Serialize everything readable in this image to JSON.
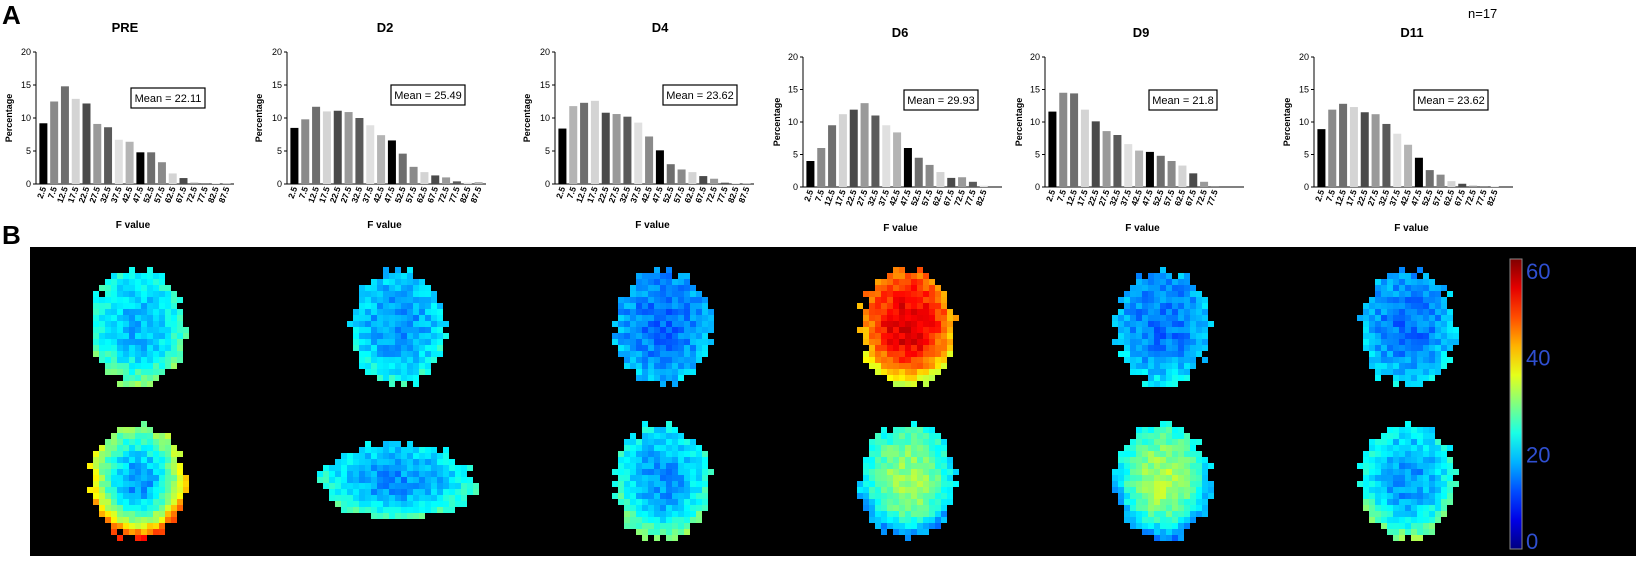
{
  "panel_labels": {
    "a": "A",
    "b": "B"
  },
  "n_label": "n=17",
  "chart_data": [
    {
      "type": "bar",
      "title": "PRE",
      "xlabel": "F value",
      "ylabel": "Percentage",
      "ylim": [
        0,
        20
      ],
      "yticks": [
        "0",
        "5",
        "10",
        "15",
        "20"
      ],
      "categories": [
        "2.5",
        "7.5",
        "12.5",
        "17.5",
        "22.5",
        "27.5",
        "32.5",
        "37.5",
        "42.5",
        "47.5",
        "52.5",
        "57.5",
        "62.5",
        "67.5",
        "72.5",
        "77.5",
        "82.5",
        "87.5"
      ],
      "values": [
        9.2,
        12.5,
        14.8,
        12.9,
        12.2,
        9.1,
        8.6,
        6.7,
        6.4,
        4.8,
        4.8,
        3.3,
        1.6,
        0.9,
        0.2,
        0.1,
        0.1,
        0.1
      ],
      "annotation": "Mean = 22.11",
      "bar_colors": [
        "#000000",
        "#8a8a8a",
        "#6e6e6e",
        "#d4d4d4",
        "#4a4a4a",
        "#9a9a9a",
        "#5a5a5a",
        "#e0e0e0",
        "#b4b4b4",
        "#000000",
        "#6e6e6e",
        "#8a8a8a",
        "#d4d4d4",
        "#4a4a4a",
        "#9a9a9a",
        "#5a5a5a",
        "#e0e0e0",
        "#b4b4b4"
      ]
    },
    {
      "type": "bar",
      "title": "D2",
      "xlabel": "F value",
      "ylabel": "Percentage",
      "ylim": [
        0,
        20
      ],
      "yticks": [
        "0",
        "5",
        "10",
        "15",
        "20"
      ],
      "categories": [
        "2.5",
        "7.5",
        "12.5",
        "17.5",
        "22.5",
        "27.5",
        "32.5",
        "37.5",
        "42.5",
        "47.5",
        "52.5",
        "57.5",
        "62.5",
        "67.5",
        "72.5",
        "77.5",
        "82.5",
        "87.5"
      ],
      "values": [
        8.5,
        9.8,
        11.7,
        11.0,
        11.1,
        10.9,
        10.0,
        8.9,
        7.4,
        6.6,
        4.6,
        2.6,
        1.8,
        1.3,
        1.0,
        0.4,
        0.2,
        0.3
      ],
      "annotation": "Mean = 25.49",
      "bar_colors": [
        "#000000",
        "#8a8a8a",
        "#6e6e6e",
        "#d4d4d4",
        "#4a4a4a",
        "#9a9a9a",
        "#5a5a5a",
        "#e0e0e0",
        "#b4b4b4",
        "#000000",
        "#6e6e6e",
        "#8a8a8a",
        "#d4d4d4",
        "#4a4a4a",
        "#9a9a9a",
        "#5a5a5a",
        "#e0e0e0",
        "#b4b4b4"
      ]
    },
    {
      "type": "bar",
      "title": "D4",
      "xlabel": "F value",
      "ylabel": "Percentage",
      "ylim": [
        0,
        20
      ],
      "yticks": [
        "0",
        "5",
        "10",
        "15",
        "20"
      ],
      "categories": [
        "2.5",
        "7.5",
        "12.5",
        "17.5",
        "22.5",
        "27.5",
        "32.5",
        "37.5",
        "42.5",
        "47.5",
        "52.5",
        "57.5",
        "62.5",
        "67.5",
        "72.5",
        "77.5",
        "82.5",
        "87.5"
      ],
      "values": [
        8.4,
        11.8,
        12.3,
        12.6,
        10.8,
        10.6,
        10.2,
        9.3,
        7.2,
        5.1,
        3.0,
        2.2,
        1.8,
        1.2,
        0.8,
        0.2,
        0.1,
        0.1
      ],
      "annotation": "Mean = 23.62",
      "bar_colors": [
        "#000000",
        "#b4b4b4",
        "#6e6e6e",
        "#d4d4d4",
        "#4a4a4a",
        "#9a9a9a",
        "#5a5a5a",
        "#e0e0e0",
        "#8a8a8a",
        "#000000",
        "#6e6e6e",
        "#8a8a8a",
        "#d4d4d4",
        "#4a4a4a",
        "#9a9a9a",
        "#5a5a5a",
        "#e0e0e0",
        "#b4b4b4"
      ]
    },
    {
      "type": "bar",
      "title": "D6",
      "xlabel": "F value",
      "ylabel": "Percentage",
      "ylim": [
        0,
        20
      ],
      "yticks": [
        "0",
        "5",
        "10",
        "15",
        "20"
      ],
      "categories": [
        "2.5",
        "7.5",
        "12.5",
        "17.5",
        "22.5",
        "27.5",
        "32.5",
        "37.5",
        "42.5",
        "47.5",
        "52.5",
        "57.5",
        "62.5",
        "67.5",
        "72.5",
        "77.5",
        "82.5"
      ],
      "values": [
        4.0,
        6.0,
        9.5,
        11.2,
        11.9,
        12.9,
        11.0,
        9.5,
        8.4,
        6.0,
        4.5,
        3.4,
        2.3,
        1.4,
        1.5,
        0.8,
        0.2
      ],
      "annotation": "Mean = 29.93",
      "bar_colors": [
        "#000000",
        "#8a8a8a",
        "#6e6e6e",
        "#d4d4d4",
        "#4a4a4a",
        "#9a9a9a",
        "#5a5a5a",
        "#e0e0e0",
        "#b4b4b4",
        "#000000",
        "#6e6e6e",
        "#8a8a8a",
        "#d4d4d4",
        "#4a4a4a",
        "#9a9a9a",
        "#5a5a5a",
        "#e0e0e0"
      ]
    },
    {
      "type": "bar",
      "title": "D9",
      "xlabel": "F value",
      "ylabel": "Percentage",
      "ylim": [
        0,
        20
      ],
      "yticks": [
        "0",
        "5",
        "10",
        "15",
        "20"
      ],
      "categories": [
        "2.5",
        "7.5",
        "12.5",
        "17.5",
        "22.5",
        "27.5",
        "32.5",
        "37.5",
        "42.5",
        "47.5",
        "52.5",
        "57.5",
        "62.5",
        "67.5",
        "72.5",
        "77.5"
      ],
      "values": [
        11.6,
        14.5,
        14.4,
        11.9,
        10.1,
        8.6,
        8.0,
        6.6,
        5.6,
        5.4,
        4.8,
        4.0,
        3.3,
        2.1,
        0.8,
        0.1
      ],
      "annotation": "Mean = 21.8",
      "bar_colors": [
        "#000000",
        "#8a8a8a",
        "#6e6e6e",
        "#d4d4d4",
        "#4a4a4a",
        "#9a9a9a",
        "#5a5a5a",
        "#e0e0e0",
        "#b4b4b4",
        "#000000",
        "#6e6e6e",
        "#8a8a8a",
        "#d4d4d4",
        "#4a4a4a",
        "#9a9a9a",
        "#5a5a5a"
      ]
    },
    {
      "type": "bar",
      "title": "D11",
      "xlabel": "F value",
      "ylabel": "Percentage",
      "ylim": [
        0,
        20
      ],
      "yticks": [
        "0",
        "5",
        "10",
        "15",
        "20"
      ],
      "categories": [
        "2.5",
        "7.5",
        "12.5",
        "17.5",
        "22.5",
        "27.5",
        "32.5",
        "37.5",
        "42.5",
        "47.5",
        "52.5",
        "57.5",
        "62.5",
        "67.5",
        "72.5",
        "77.5",
        "82.5"
      ],
      "values": [
        8.9,
        11.9,
        12.8,
        12.3,
        11.5,
        11.2,
        9.7,
        8.2,
        6.5,
        4.5,
        2.6,
        1.9,
        0.9,
        0.5,
        0.2,
        0.1,
        0.1
      ],
      "annotation": "Mean = 23.62",
      "bar_colors": [
        "#000000",
        "#8a8a8a",
        "#6e6e6e",
        "#d4d4d4",
        "#4a4a4a",
        "#9a9a9a",
        "#5a5a5a",
        "#e0e0e0",
        "#b4b4b4",
        "#000000",
        "#6e6e6e",
        "#8a8a8a",
        "#d4d4d4",
        "#4a4a4a",
        "#9a9a9a",
        "#5a5a5a",
        "#e0e0e0"
      ]
    },
    {
      "type": "heatmap",
      "colorbar": {
        "ticks": [
          "0",
          "20",
          "40",
          "60"
        ],
        "range": [
          0,
          60
        ]
      },
      "rows": 2,
      "columns": [
        "PRE",
        "D2",
        "D4",
        "D6",
        "D9",
        "D11"
      ],
      "maps": [
        {
          "row": 0,
          "col": 0,
          "base": 18,
          "hot": 30
        },
        {
          "row": 0,
          "col": 1,
          "base": 16,
          "hot": 25
        },
        {
          "row": 0,
          "col": 2,
          "base": 14,
          "hot": 20
        },
        {
          "row": 0,
          "col": 3,
          "base": 55,
          "hot": 35
        },
        {
          "row": 0,
          "col": 4,
          "base": 14,
          "hot": 22
        },
        {
          "row": 0,
          "col": 5,
          "base": 14,
          "hot": 22
        },
        {
          "row": 1,
          "col": 0,
          "base": 16,
          "hot": 50
        },
        {
          "row": 1,
          "col": 1,
          "base": 16,
          "hot": 28
        },
        {
          "row": 1,
          "col": 2,
          "base": 16,
          "hot": 30
        },
        {
          "row": 1,
          "col": 3,
          "base": 32,
          "hot": 15
        },
        {
          "row": 1,
          "col": 4,
          "base": 33,
          "hot": 14
        },
        {
          "row": 1,
          "col": 5,
          "base": 16,
          "hot": 30
        }
      ]
    }
  ]
}
